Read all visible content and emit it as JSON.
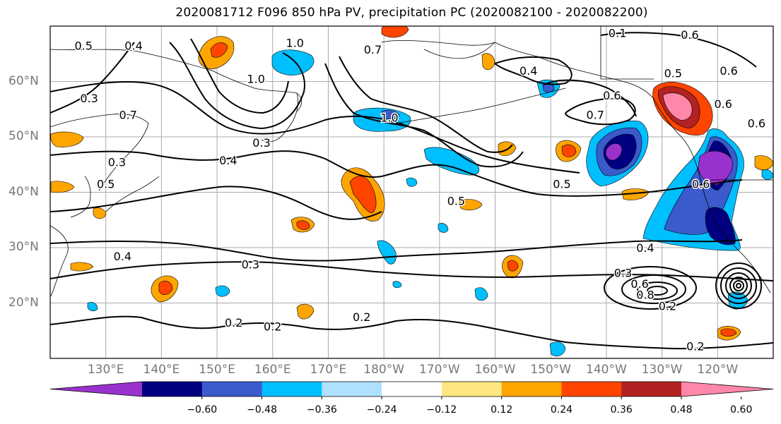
{
  "title": "2020081712 F096 850 hPa PV, precipitation PC (2020082100 - 2020082200)",
  "map": {
    "lon_range": [
      120,
      250
    ],
    "lat_range": [
      10,
      70
    ],
    "lat_labels": [
      {
        "lat": 60,
        "text": "60°N"
      },
      {
        "lat": 50,
        "text": "50°N"
      },
      {
        "lat": 40,
        "text": "40°N"
      },
      {
        "lat": 30,
        "text": "30°N"
      },
      {
        "lat": 20,
        "text": "20°N"
      }
    ],
    "lon_labels": [
      {
        "lon": 130,
        "text": "130°E"
      },
      {
        "lon": 140,
        "text": "140°E"
      },
      {
        "lon": 150,
        "text": "150°E"
      },
      {
        "lon": 160,
        "text": "160°E"
      },
      {
        "lon": 170,
        "text": "170°E"
      },
      {
        "lon": 180,
        "text": "180°W"
      },
      {
        "lon": 190,
        "text": "170°W"
      },
      {
        "lon": 200,
        "text": "160°W"
      },
      {
        "lon": 210,
        "text": "150°W"
      },
      {
        "lon": 220,
        "text": "140°W"
      },
      {
        "lon": 230,
        "text": "130°W"
      },
      {
        "lon": 240,
        "text": "120°W"
      }
    ],
    "contour_labels": [
      {
        "text": "0.5",
        "lon": 126,
        "lat": 66.5
      },
      {
        "text": "0.4",
        "lon": 135,
        "lat": 66.5
      },
      {
        "text": "1.0",
        "lon": 164,
        "lat": 67
      },
      {
        "text": "0.7",
        "lon": 178,
        "lat": 65.8
      },
      {
        "text": "0.6",
        "lon": 235,
        "lat": 68.5
      },
      {
        "text": "0.1",
        "lon": 222,
        "lat": 68.8
      },
      {
        "text": "0.4",
        "lon": 206,
        "lat": 62
      },
      {
        "text": "0.5",
        "lon": 232,
        "lat": 61.5
      },
      {
        "text": "0.6",
        "lon": 242,
        "lat": 62
      },
      {
        "text": "1.0",
        "lon": 157,
        "lat": 60.5
      },
      {
        "text": "0.3",
        "lon": 127,
        "lat": 57
      },
      {
        "text": "0.7",
        "lon": 134,
        "lat": 54
      },
      {
        "text": "1.0",
        "lon": 181,
        "lat": 53.5
      },
      {
        "text": "0.6",
        "lon": 221,
        "lat": 57.5
      },
      {
        "text": "0.7",
        "lon": 218,
        "lat": 54
      },
      {
        "text": "0.6",
        "lon": 241,
        "lat": 56
      },
      {
        "text": "0.6",
        "lon": 247,
        "lat": 52.5
      },
      {
        "text": "0.3",
        "lon": 158,
        "lat": 49
      },
      {
        "text": "0.3",
        "lon": 132,
        "lat": 45.5
      },
      {
        "text": "0.4",
        "lon": 152,
        "lat": 45.8
      },
      {
        "text": "0.5",
        "lon": 130,
        "lat": 41.5
      },
      {
        "text": "0.5",
        "lon": 212,
        "lat": 41.5
      },
      {
        "text": "0.6",
        "lon": 237,
        "lat": 41.5
      },
      {
        "text": "0.5",
        "lon": 193,
        "lat": 38.5
      },
      {
        "text": "0.4",
        "lon": 227,
        "lat": 30
      },
      {
        "text": "0.4",
        "lon": 133,
        "lat": 28.5
      },
      {
        "text": "0.3",
        "lon": 156,
        "lat": 27
      },
      {
        "text": "0.3",
        "lon": 223,
        "lat": 25.5
      },
      {
        "text": "0.6",
        "lon": 226,
        "lat": 23.5
      },
      {
        "text": "0.8",
        "lon": 227,
        "lat": 21.5
      },
      {
        "text": "0.2",
        "lon": 231,
        "lat": 19.5
      },
      {
        "text": "0.2",
        "lon": 153,
        "lat": 16.5
      },
      {
        "text": "0.2",
        "lon": 160,
        "lat": 15.8
      },
      {
        "text": "0.2",
        "lon": 176,
        "lat": 17.5
      },
      {
        "text": "0.2",
        "lon": 236,
        "lat": 12.2
      }
    ]
  },
  "colorbar": {
    "colors": [
      "#9932cc",
      "#000080",
      "#3b5bcc",
      "#00bfff",
      "#b0e0ff",
      "#ffffff",
      "#ffe680",
      "#ffa500",
      "#ff4500",
      "#b22222",
      "#ff88aa"
    ],
    "ticks": [
      "−0.60",
      "−0.48",
      "−0.36",
      "−0.24",
      "−0.12",
      "0.12",
      "0.24",
      "0.36",
      "0.48",
      "0.60"
    ]
  }
}
